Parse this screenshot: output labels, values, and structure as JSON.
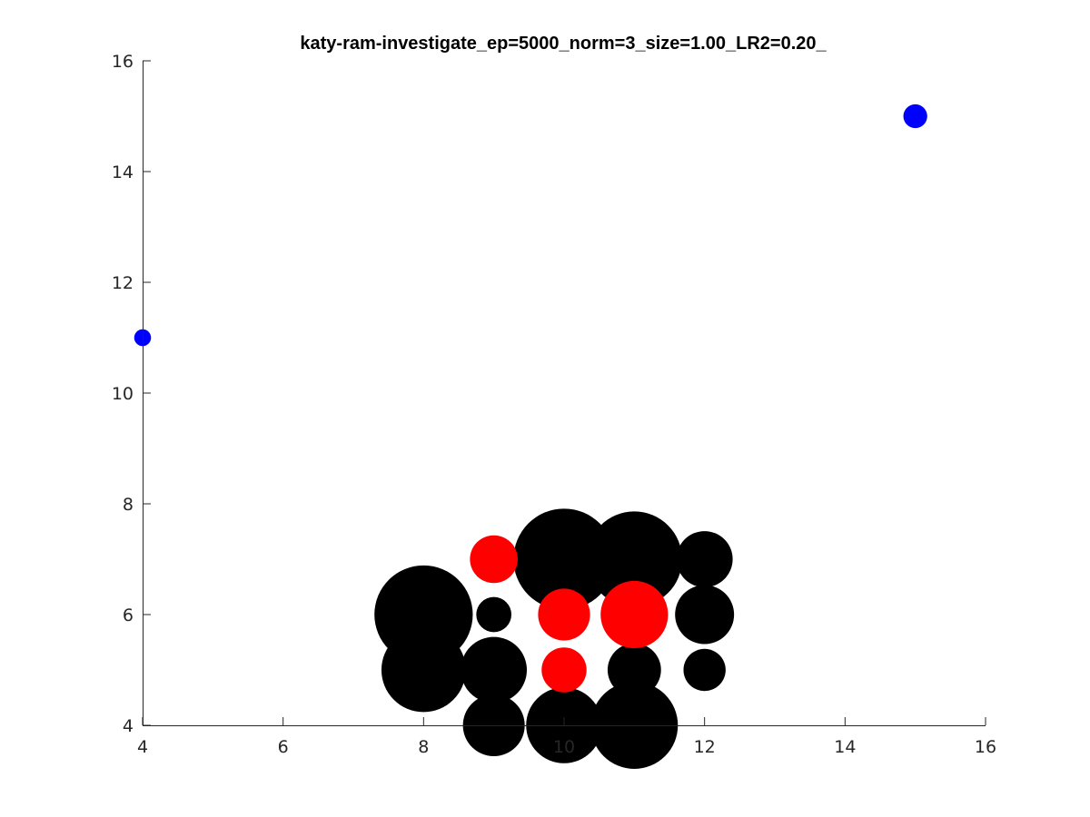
{
  "chart_data": {
    "type": "scatter",
    "title": "katy-ram-investigate_ep=5000_norm=3_size=1.00_LR2=0.20_",
    "xlabel": "",
    "ylabel": "",
    "xlim": [
      4,
      16
    ],
    "ylim": [
      4,
      16
    ],
    "xticks": [
      "4",
      "6",
      "8",
      "10",
      "12",
      "14",
      "16"
    ],
    "yticks": [
      "4",
      "6",
      "8",
      "10",
      "12",
      "14",
      "16"
    ],
    "grid": false,
    "colors": {
      "black": "#000000",
      "red": "#ff0000",
      "blue": "#0000ff"
    },
    "series": [
      {
        "color": "black",
        "points": [
          {
            "x": 8,
            "y": 6,
            "r": 0.7
          },
          {
            "x": 8,
            "y": 5,
            "r": 0.6
          },
          {
            "x": 9,
            "y": 6,
            "r": 0.25
          },
          {
            "x": 9,
            "y": 5,
            "r": 0.47
          },
          {
            "x": 9,
            "y": 4,
            "r": 0.44
          },
          {
            "x": 10,
            "y": 7,
            "r": 0.72
          },
          {
            "x": 10,
            "y": 4,
            "r": 0.54
          },
          {
            "x": 11,
            "y": 7,
            "r": 0.68
          },
          {
            "x": 11,
            "y": 5,
            "r": 0.38
          },
          {
            "x": 11,
            "y": 4,
            "r": 0.62
          },
          {
            "x": 12,
            "y": 7,
            "r": 0.4
          },
          {
            "x": 12,
            "y": 6,
            "r": 0.42
          },
          {
            "x": 12,
            "y": 5,
            "r": 0.3
          }
        ]
      },
      {
        "color": "red",
        "points": [
          {
            "x": 9,
            "y": 7,
            "r": 0.34
          },
          {
            "x": 10,
            "y": 6,
            "r": 0.37
          },
          {
            "x": 10,
            "y": 5,
            "r": 0.32
          },
          {
            "x": 11,
            "y": 6,
            "r": 0.48
          }
        ]
      },
      {
        "color": "blue",
        "points": [
          {
            "x": 4,
            "y": 11,
            "r": 0.12
          },
          {
            "x": 15,
            "y": 15,
            "r": 0.17
          }
        ]
      }
    ]
  }
}
